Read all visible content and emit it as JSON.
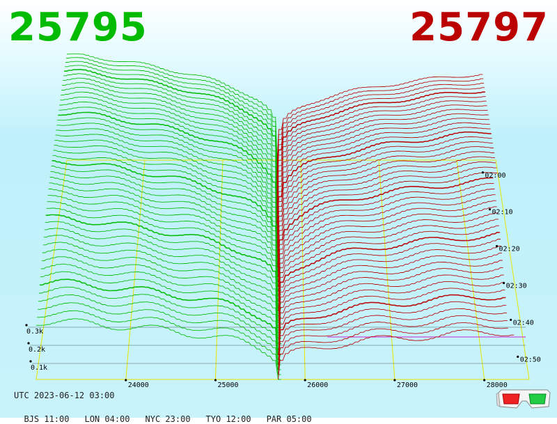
{
  "header": {
    "bid_price": "25795",
    "ask_price": "25797"
  },
  "colors": {
    "bid": "#00bb00",
    "ask": "#bb0000",
    "grid": "#e6e600",
    "floor_line": "#000000",
    "accent_line": "#cc22cc"
  },
  "chart_data": {
    "type": "area",
    "subtype": "3d-order-book-depth-history",
    "x_axis": {
      "label": "",
      "range": [
        23000,
        28500
      ],
      "ticks": [
        "24000",
        "25000",
        "26000",
        "27000",
        "28000"
      ]
    },
    "z_axis": {
      "label": "",
      "ticks": [
        "02:00",
        "02:10",
        "02:20",
        "02:30",
        "02:40",
        "02:50"
      ]
    },
    "y_axis": {
      "label": "",
      "ticks": [
        "0.3k",
        "0.2k",
        "0.1k"
      ],
      "range": [
        0,
        1.3
      ]
    },
    "grid": true,
    "series": [
      {
        "name": "",
        "side": "bid",
        "price_range": [
          23000,
          25700
        ],
        "depth_at_far_end_k": 1.15
      },
      {
        "name": "",
        "side": "ask",
        "price_range": [
          25700,
          28300
        ],
        "depth_at_far_end_k": 0.95
      }
    ]
  },
  "footer": {
    "utc": "UTC 2023-06-12 03:00",
    "cities": [
      {
        "label": "BJS 11:00"
      },
      {
        "label": "LON 04:00"
      },
      {
        "label": "NYC 23:00"
      },
      {
        "label": "TYO 12:00"
      },
      {
        "label": "PAR 05:00"
      }
    ]
  },
  "icons": {
    "glasses": "3d-glasses-icon"
  }
}
